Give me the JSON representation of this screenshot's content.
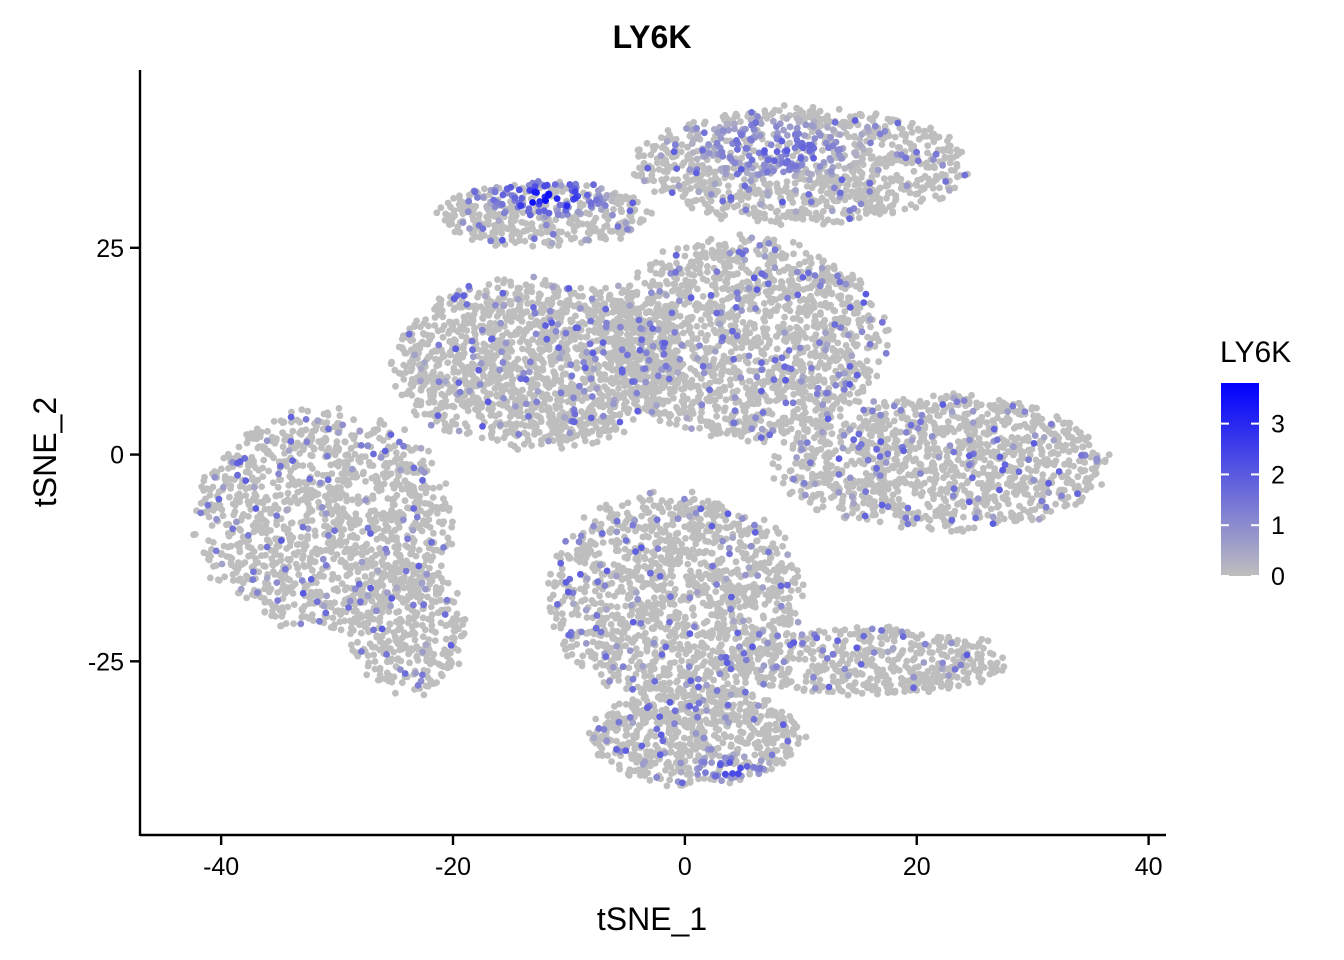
{
  "chart_data": {
    "type": "scatter",
    "title": "LY6K",
    "xlabel": "tSNE_1",
    "ylabel": "tSNE_2",
    "xlim": [
      -47,
      41.5
    ],
    "ylim": [
      -46,
      46.5
    ],
    "xticks": [
      -40,
      -20,
      0,
      20,
      40
    ],
    "xtick_labels": [
      "-40",
      "-20",
      "0",
      "20",
      "40"
    ],
    "yticks": [
      25,
      0,
      -25
    ],
    "ytick_labels": [
      "25",
      "0",
      "-25"
    ],
    "grid": false,
    "legend": {
      "title": "LY6K",
      "placement": "right",
      "range": [
        0,
        3.8
      ],
      "ticks": [
        3,
        2,
        1,
        0
      ],
      "tick_labels": [
        "3",
        "2",
        "1",
        "0"
      ],
      "low_color": "#bebebe",
      "high_color": "#0000ff"
    },
    "point_color_low": "#bebebe",
    "point_color_high": "#0000ff",
    "clusters": [
      {
        "cx": -31,
        "cy": -8,
        "rx": 11,
        "ry": 13,
        "n": 1300
      },
      {
        "cx": -24,
        "cy": -21,
        "rx": 5,
        "ry": 8,
        "n": 350
      },
      {
        "cx": -13,
        "cy": 11,
        "rx": 12,
        "ry": 10,
        "n": 1500
      },
      {
        "cx": 5,
        "cy": 14,
        "rx": 12,
        "ry": 12,
        "n": 1600
      },
      {
        "cx": 10,
        "cy": 35,
        "rx": 14,
        "ry": 7,
        "n": 1100
      },
      {
        "cx": -12,
        "cy": 29,
        "rx": 9,
        "ry": 4,
        "n": 450
      },
      {
        "cx": 22,
        "cy": -1,
        "rx": 14,
        "ry": 8,
        "n": 1200
      },
      {
        "cx": -1,
        "cy": -17,
        "rx": 11,
        "ry": 12,
        "n": 1300
      },
      {
        "cx": 1,
        "cy": -34,
        "rx": 9,
        "ry": 6,
        "n": 700
      },
      {
        "cx": 16,
        "cy": -25,
        "rx": 12,
        "ry": 4,
        "n": 500
      }
    ],
    "high_expression_regions": [
      {
        "cx": -12,
        "cy": 31,
        "rx": 6,
        "ry": 2.5,
        "level": 3.2
      },
      {
        "cx": 8,
        "cy": 37,
        "rx": 8,
        "ry": 4,
        "level": 1.8
      },
      {
        "cx": 4,
        "cy": -38,
        "rx": 4,
        "ry": 2,
        "level": 2.2
      }
    ]
  }
}
